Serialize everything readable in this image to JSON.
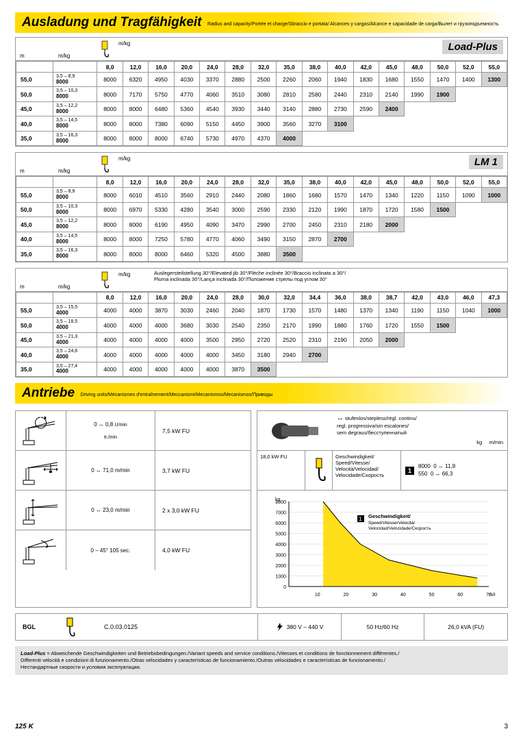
{
  "sect1": {
    "title": "Ausladung und Tragfähigkeit",
    "sub": "Radius and capacity/Portée et charge/Sbraccio e portata/\nAlcances y cargas/Alcance e capacidade de carga/Вылет и грузоподъемность"
  },
  "sect2": {
    "title": "Antriebe",
    "sub": "Driving units/Mécanismes d'entraînement/Meccanismi/Mecanismos/Mecanismos/Приводы"
  },
  "cols": [
    "8,0",
    "12,0",
    "16,0",
    "20,0",
    "24,0",
    "28,0",
    "32,0",
    "35,0",
    "38,0",
    "40,0",
    "42,0",
    "45,0",
    "48,0",
    "50,0",
    "52,0",
    "55,0"
  ],
  "cols_bold": [
    0,
    0,
    0,
    0,
    0,
    0,
    0,
    1,
    0,
    1,
    0,
    1,
    0,
    1,
    0,
    1
  ],
  "cols30": [
    "8,0",
    "12,0",
    "16,0",
    "20,0",
    "24,0",
    "28,0",
    "30,0",
    "32,0",
    "34,4",
    "36,0",
    "38,0",
    "38,7",
    "42,0",
    "43,0",
    "46,0",
    "47,3"
  ],
  "cols30_bold": [
    0,
    0,
    0,
    0,
    0,
    0,
    1,
    0,
    1,
    0,
    0,
    1,
    0,
    1,
    0,
    1
  ],
  "t1": {
    "title": "Load-Plus",
    "rows": [
      {
        "m": "55,0",
        "r": "3,5 – 8,9",
        "b": "8000",
        "v": [
          "8000",
          "6320",
          "4950",
          "4030",
          "3370",
          "2880",
          "2500",
          "2260",
          "2060",
          "1940",
          "1830",
          "1680",
          "1550",
          "1470",
          "1400",
          "1300"
        ],
        "hl": 15
      },
      {
        "m": "50,0",
        "r": "3,5 – 10,3",
        "b": "8000",
        "v": [
          "8000",
          "7170",
          "5750",
          "4770",
          "4060",
          "3510",
          "3080",
          "2810",
          "2580",
          "2440",
          "2310",
          "2140",
          "1990",
          "1900"
        ],
        "hl": 13
      },
      {
        "m": "45,0",
        "r": "3,5 – 12,2",
        "b": "8000",
        "v": [
          "8000",
          "8000",
          "6480",
          "5360",
          "4540",
          "3930",
          "3440",
          "3140",
          "2880",
          "2730",
          "2590",
          "2400"
        ],
        "hl": 11
      },
      {
        "m": "40,0",
        "r": "3,5 – 14,5",
        "b": "8000",
        "v": [
          "8000",
          "8000",
          "7380",
          "6090",
          "5150",
          "4450",
          "3900",
          "3560",
          "3270",
          "3100"
        ],
        "hl": 9
      },
      {
        "m": "35,0",
        "r": "3,5 – 16,3",
        "b": "8000",
        "v": [
          "8000",
          "8000",
          "8000",
          "6740",
          "5730",
          "4970",
          "4370",
          "4000"
        ],
        "hl": 7
      }
    ]
  },
  "t2": {
    "title": "LM 1",
    "rows": [
      {
        "m": "55,0",
        "r": "3,5 – 8,9",
        "b": "8000",
        "v": [
          "8000",
          "6010",
          "4510",
          "3560",
          "2910",
          "2440",
          "2080",
          "1860",
          "1680",
          "1570",
          "1470",
          "1340",
          "1220",
          "1150",
          "1090",
          "1000"
        ],
        "hl": 15
      },
      {
        "m": "50,0",
        "r": "3,5 – 10,3",
        "b": "8000",
        "v": [
          "8000",
          "6970",
          "5330",
          "4280",
          "3540",
          "3000",
          "2590",
          "2330",
          "2120",
          "1990",
          "1870",
          "1720",
          "1580",
          "1500"
        ],
        "hl": 13
      },
      {
        "m": "45,0",
        "r": "3,5 – 12,2",
        "b": "8000",
        "v": [
          "8000",
          "8000",
          "6190",
          "4950",
          "4090",
          "3470",
          "2990",
          "2700",
          "2450",
          "2310",
          "2180",
          "2000"
        ],
        "hl": 11
      },
      {
        "m": "40,0",
        "r": "3,5 – 14,5",
        "b": "8000",
        "v": [
          "8000",
          "8000",
          "7250",
          "5780",
          "4770",
          "4060",
          "3490",
          "3150",
          "2870",
          "2700"
        ],
        "hl": 9
      },
      {
        "m": "35,0",
        "r": "3,5 – 16,3",
        "b": "8000",
        "v": [
          "8000",
          "8000",
          "8000",
          "6460",
          "5320",
          "4500",
          "3880",
          "3500"
        ],
        "hl": 7
      }
    ]
  },
  "t3": {
    "note": "Auslegersteilstellung 30°/Elevated jib 30°/Flèche inclinée 30°/Braccio inclinato a 30°/\nPluma inclinada 30°/Lança inclinada 30°/Положение стрелы под углом 30°",
    "rows": [
      {
        "m": "55,0",
        "r": "3,5 – 15,5",
        "b": "4000",
        "v": [
          "4000",
          "4000",
          "3870",
          "3030",
          "2460",
          "2040",
          "1870",
          "1730",
          "1570",
          "1480",
          "1370",
          "1340",
          "1190",
          "1150",
          "1040",
          "1000"
        ],
        "hl": 15
      },
      {
        "m": "50,0",
        "r": "3,5 – 18,5",
        "b": "4000",
        "v": [
          "4000",
          "4000",
          "4000",
          "3680",
          "3030",
          "2540",
          "2350",
          "2170",
          "1990",
          "1880",
          "1760",
          "1720",
          "1550",
          "1500"
        ],
        "hl": 13
      },
      {
        "m": "45,0",
        "r": "3,5 – 21,3",
        "b": "4000",
        "v": [
          "4000",
          "4000",
          "4000",
          "4000",
          "3500",
          "2950",
          "2720",
          "2520",
          "2310",
          "2190",
          "2050",
          "2000"
        ],
        "hl": 11
      },
      {
        "m": "40,0",
        "r": "3,5 – 24,6",
        "b": "4000",
        "v": [
          "4000",
          "4000",
          "4000",
          "4000",
          "4000",
          "3450",
          "3180",
          "2940",
          "2700"
        ],
        "hl": 8
      },
      {
        "m": "35,0",
        "r": "3,5 – 27,4",
        "b": "4000",
        "v": [
          "4000",
          "4000",
          "4000",
          "4000",
          "4000",
          "3870",
          "3500"
        ],
        "hl": 6
      }
    ]
  },
  "drives": [
    {
      "val": "0 ↔ 0,8 sl./min",
      "unit": "U/min\n\ntr./min",
      "pwr": "7,5 kW FU"
    },
    {
      "val": "0 ↔ 71,0 m/min",
      "unit": "",
      "pwr": "3,7 kW FU"
    },
    {
      "val": "0 ↔ 23,0 m/min",
      "unit": "",
      "pwr": "2 x 3,0 kW FU"
    },
    {
      "val": "0 – 45° 105 sec.",
      "unit": "",
      "pwr": "4,0 kW FU"
    }
  ],
  "winch": {
    "stepless": "stufenlos/stepless/régl. continu/\nregl. progressiva/sin escalones/\nsem degraus/бесступенчатый",
    "kg": "kg",
    "mmin": "m/min",
    "pwr": "18,0 kW FU",
    "speed_lbl": "Geschwindigkeit/\nSpeed/Vitesse/\nVelocità/Velocidad/\nVelocidade/Скорость",
    "vals": [
      [
        "8000",
        "0 ↔ 11,8"
      ],
      [
        "550",
        "0 ↔ 66,3"
      ]
    ]
  },
  "chart": {
    "ylabel": "kg",
    "xlabel": "70 m/min",
    "yticks": [
      "8000",
      "7000",
      "6000",
      "5000",
      "4000",
      "3000",
      "2000",
      "1000",
      "0"
    ],
    "xticks": [
      "10",
      "20",
      "30",
      "40",
      "50",
      "60",
      "70"
    ],
    "legend": "Geschwindigkeit/\nSpeed/Vitesse/Velocità/\nVelocidad/Velocidade/Скорость",
    "curve_color": "#ffdc00",
    "points": [
      [
        12,
        8000
      ],
      [
        18,
        6000
      ],
      [
        25,
        4000
      ],
      [
        35,
        2500
      ],
      [
        50,
        1500
      ],
      [
        66,
        800
      ]
    ]
  },
  "bgl": {
    "label": "BGL",
    "code": "C.0.03.0125",
    "v1": "380 V – 440 V",
    "v2": "50 Hz/60 Hz",
    "v3": "26,0 kVA (FU)"
  },
  "lp_note": {
    "b": "Load-Plus",
    "txt": " = Abweichende Geschwindigkeiten und Betriebsbedingungen./Variant speeds and service conditions./Vitesses et conditions de fonctionnement différentes./\nDifferenti velocità e condizioni di funzionamento./Otras velocidades y características de funcionamiento./Outras velocidades e características de funcionamento./\nНестандартные скорости и условия эксплуатации."
  },
  "footer": {
    "model": "125 K",
    "page": "3"
  }
}
